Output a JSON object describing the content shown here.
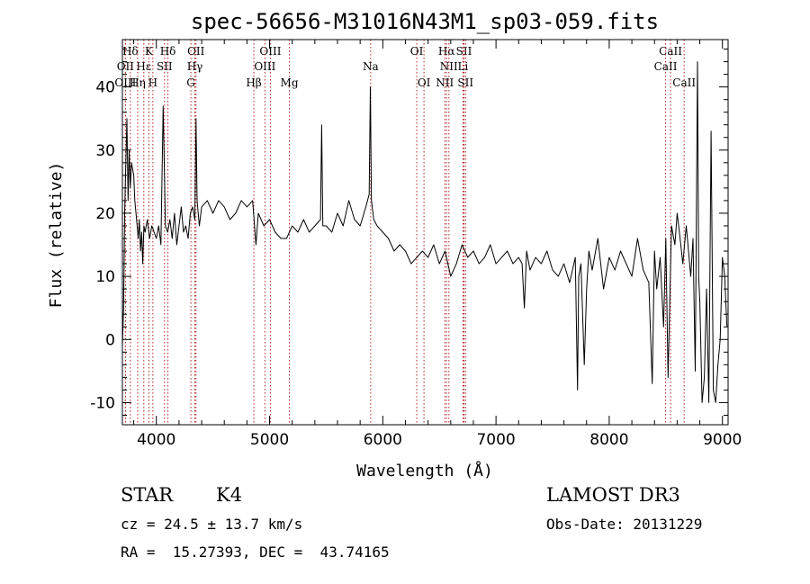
{
  "chart_data": {
    "type": "line",
    "title": "spec-56656-M31016N43M1_sp03-059.fits",
    "xlabel": "Wavelength (Å)",
    "ylabel": "Flux (relative)",
    "xlim": [
      3700,
      9050
    ],
    "ylim": [
      -13.5,
      47.5
    ],
    "x_ticks": [
      4000,
      5000,
      6000,
      7000,
      8000,
      9000
    ],
    "y_ticks": [
      -10,
      0,
      10,
      20,
      30,
      40
    ],
    "x_minor_step": 200,
    "y_minor_step": 2,
    "line_color": "#000000",
    "marker_color": "#b22222",
    "series": [
      {
        "x": [
          3700,
          3710,
          3720,
          3730,
          3740,
          3750,
          3760,
          3770,
          3780,
          3790,
          3800,
          3810,
          3820,
          3830,
          3840,
          3850,
          3860,
          3870,
          3880,
          3890,
          3900,
          3920,
          3940,
          3960,
          3980,
          4000,
          4020,
          4040,
          4060,
          4080,
          4100,
          4120,
          4140,
          4160,
          4180,
          4200,
          4220,
          4240,
          4260,
          4280,
          4300,
          4320,
          4340,
          4350,
          4360,
          4380,
          4400,
          4450,
          4500,
          4550,
          4600,
          4650,
          4700,
          4750,
          4800,
          4850,
          4880,
          4900,
          4950,
          5000,
          5050,
          5100,
          5150,
          5200,
          5250,
          5300,
          5350,
          5400,
          5450,
          5460,
          5470,
          5500,
          5550,
          5600,
          5650,
          5700,
          5750,
          5800,
          5850,
          5880,
          5890,
          5900,
          5920,
          5950,
          6000,
          6050,
          6100,
          6150,
          6200,
          6250,
          6300,
          6350,
          6400,
          6450,
          6500,
          6550,
          6600,
          6650,
          6700,
          6750,
          6800,
          6850,
          6900,
          6950,
          7000,
          7050,
          7100,
          7150,
          7200,
          7230,
          7250,
          7270,
          7300,
          7350,
          7400,
          7450,
          7500,
          7550,
          7600,
          7650,
          7700,
          7720,
          7730,
          7750,
          7780,
          7800,
          7820,
          7850,
          7900,
          7950,
          8000,
          8050,
          8100,
          8150,
          8200,
          8250,
          8300,
          8350,
          8380,
          8400,
          8420,
          8450,
          8480,
          8500,
          8520,
          8550,
          8580,
          8600,
          8620,
          8650,
          8680,
          8700,
          8720,
          8740,
          8760,
          8780,
          8790,
          8800,
          8820,
          8840,
          8860,
          8880,
          8900,
          8920,
          8940,
          8960,
          8980,
          9000,
          9020,
          9040
        ],
        "y": [
          -1,
          5,
          20,
          28,
          35,
          22,
          30,
          24,
          28,
          27,
          26,
          22,
          20,
          18,
          16,
          19,
          14,
          17,
          12,
          18,
          17,
          19,
          16,
          18,
          17,
          16,
          18,
          15,
          37,
          18,
          17,
          19,
          16,
          20,
          15,
          18,
          21,
          17,
          18,
          16,
          20,
          21,
          19,
          35,
          22,
          18,
          21,
          22,
          20,
          22,
          21,
          19,
          20,
          22,
          21,
          22,
          15,
          20,
          18,
          19,
          17,
          16,
          16,
          18,
          17,
          19,
          17,
          18,
          19,
          34,
          18,
          18,
          17,
          20,
          18,
          22,
          19,
          18,
          21,
          23,
          40,
          22,
          19,
          18,
          17,
          16,
          14,
          15,
          14,
          12,
          13,
          14,
          13,
          15,
          12,
          14,
          10,
          12,
          15,
          13,
          14,
          12,
          13,
          15,
          12,
          13,
          14,
          12,
          13,
          12,
          5,
          14,
          11,
          13,
          12,
          14,
          11,
          10,
          12,
          9,
          13,
          -8,
          10,
          12,
          -4,
          8,
          14,
          11,
          16,
          8,
          13,
          11,
          14,
          12,
          10,
          16,
          11,
          9,
          -7,
          14,
          8,
          13,
          2,
          16,
          -6,
          18,
          15,
          20,
          17,
          12,
          18,
          14,
          10,
          16,
          -5,
          44,
          10,
          6,
          -10,
          -6,
          8,
          -10,
          33,
          -8,
          -10,
          -4,
          0,
          13,
          10,
          2
        ]
      }
    ],
    "line_markers": [
      {
        "label": "Hδ",
        "x": 3770,
        "row": 0
      },
      {
        "label": "K",
        "x": 3934,
        "row": 0
      },
      {
        "label": "Hδ",
        "x": 4102,
        "row": 0
      },
      {
        "label": "OII",
        "x": 4350,
        "row": 0
      },
      {
        "label": "OIII",
        "x": 5007,
        "row": 0
      },
      {
        "label": "OI",
        "x": 6300,
        "row": 0
      },
      {
        "label": "Hα",
        "x": 6563,
        "row": 0
      },
      {
        "label": "SII",
        "x": 6717,
        "row": 0
      },
      {
        "label": "CaII",
        "x": 8542,
        "row": 0
      },
      {
        "label": "OII",
        "x": 3727,
        "row": 1
      },
      {
        "label": "Hε",
        "x": 3889,
        "row": 1
      },
      {
        "label": "SII",
        "x": 4072,
        "row": 1
      },
      {
        "label": "Hγ",
        "x": 4340,
        "row": 1
      },
      {
        "label": "OIII",
        "x": 4959,
        "row": 1
      },
      {
        "label": "Na",
        "x": 5893,
        "row": 1
      },
      {
        "label": "NII",
        "x": 6584,
        "row": 1
      },
      {
        "label": "Li",
        "x": 6708,
        "row": 1
      },
      {
        "label": "CaII",
        "x": 8498,
        "row": 1
      },
      {
        "label": "OIII",
        "x": 3727,
        "row": 2
      },
      {
        "label": "Hη",
        "x": 3835,
        "row": 2
      },
      {
        "label": "H",
        "x": 3969,
        "row": 2
      },
      {
        "label": "G",
        "x": 4305,
        "row": 2
      },
      {
        "label": "Hβ",
        "x": 4861,
        "row": 2
      },
      {
        "label": "Mg",
        "x": 5175,
        "row": 2
      },
      {
        "label": "OI",
        "x": 6364,
        "row": 2
      },
      {
        "label": "NII",
        "x": 6548,
        "row": 2
      },
      {
        "label": "SII",
        "x": 6731,
        "row": 2
      },
      {
        "label": "CaII",
        "x": 8662,
        "row": 2
      }
    ]
  },
  "info": {
    "class": "STAR",
    "subclass": "K4",
    "survey": "LAMOST DR3",
    "redshift": "cz = 24.5 ± 13.7 km/s",
    "obs_date": "Obs-Date: 20131229",
    "coords": "RA =  15.27393, DEC =  43.74165"
  }
}
